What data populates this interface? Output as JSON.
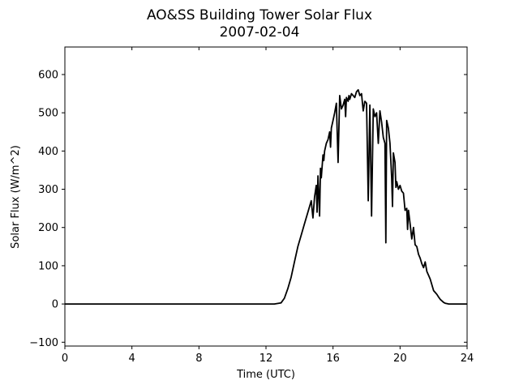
{
  "chart_data": {
    "type": "line",
    "title": "AO&SS Building Tower Solar Flux",
    "subtitle": "2007-02-04",
    "xlabel": "Time (UTC)",
    "ylabel": "Solar Flux (W/m^2)",
    "xlim": [
      0,
      24
    ],
    "ylim": [
      -110,
      672
    ],
    "xticks": [
      0,
      4,
      8,
      12,
      16,
      20,
      24
    ],
    "yticks": [
      -100,
      0,
      100,
      200,
      300,
      400,
      500,
      600
    ],
    "grid": false,
    "legend": "none",
    "line_color": "#000000",
    "series": [
      {
        "x": [
          0,
          12.5,
          12.9,
          13.1,
          13.3,
          13.5,
          13.7,
          13.9,
          14.1,
          14.3,
          14.5,
          14.7,
          14.8,
          14.9,
          15.0,
          15.05,
          15.1,
          15.2,
          15.25,
          15.3,
          15.4,
          15.45,
          15.5,
          15.6,
          15.7,
          15.8,
          15.85,
          15.9,
          16.0,
          16.1,
          16.2,
          16.3,
          16.4,
          16.5,
          16.6,
          16.7,
          16.75,
          16.8,
          16.9,
          16.95,
          17.0,
          17.1,
          17.2,
          17.3,
          17.4,
          17.5,
          17.6,
          17.7,
          17.8,
          17.9,
          18.0,
          18.1,
          18.2,
          18.3,
          18.4,
          18.5,
          18.6,
          18.7,
          18.8,
          18.9,
          19.0,
          19.1,
          19.15,
          19.2,
          19.3,
          19.4,
          19.5,
          19.55,
          19.6,
          19.7,
          19.75,
          19.8,
          19.9,
          20.0,
          20.1,
          20.2,
          20.3,
          20.4,
          20.45,
          20.5,
          20.6,
          20.7,
          20.8,
          20.9,
          21.0,
          21.1,
          21.2,
          21.3,
          21.4,
          21.5,
          21.6,
          21.7,
          21.8,
          21.9,
          22.0,
          22.1,
          22.2,
          22.3,
          22.4,
          22.5,
          22.6,
          22.7,
          22.8,
          22.9,
          23.0,
          23.1,
          23.2,
          23.4,
          23.6,
          24
        ],
        "y": [
          0,
          0,
          3,
          15,
          40,
          70,
          110,
          150,
          180,
          210,
          240,
          270,
          225,
          280,
          310,
          240,
          335,
          230,
          355,
          330,
          390,
          375,
          400,
          420,
          430,
          450,
          410,
          460,
          480,
          500,
          525,
          370,
          545,
          510,
          520,
          535,
          490,
          540,
          530,
          545,
          535,
          550,
          545,
          540,
          555,
          560,
          545,
          550,
          505,
          530,
          525,
          270,
          520,
          230,
          510,
          490,
          500,
          420,
          505,
          475,
          435,
          420,
          160,
          480,
          460,
          420,
          330,
          255,
          395,
          370,
          305,
          320,
          300,
          310,
          295,
          290,
          245,
          250,
          195,
          245,
          210,
          170,
          200,
          155,
          150,
          130,
          120,
          105,
          95,
          110,
          85,
          75,
          65,
          50,
          35,
          30,
          25,
          18,
          12,
          8,
          4,
          2,
          1,
          0,
          0,
          0,
          0,
          0,
          0,
          0
        ]
      }
    ]
  }
}
